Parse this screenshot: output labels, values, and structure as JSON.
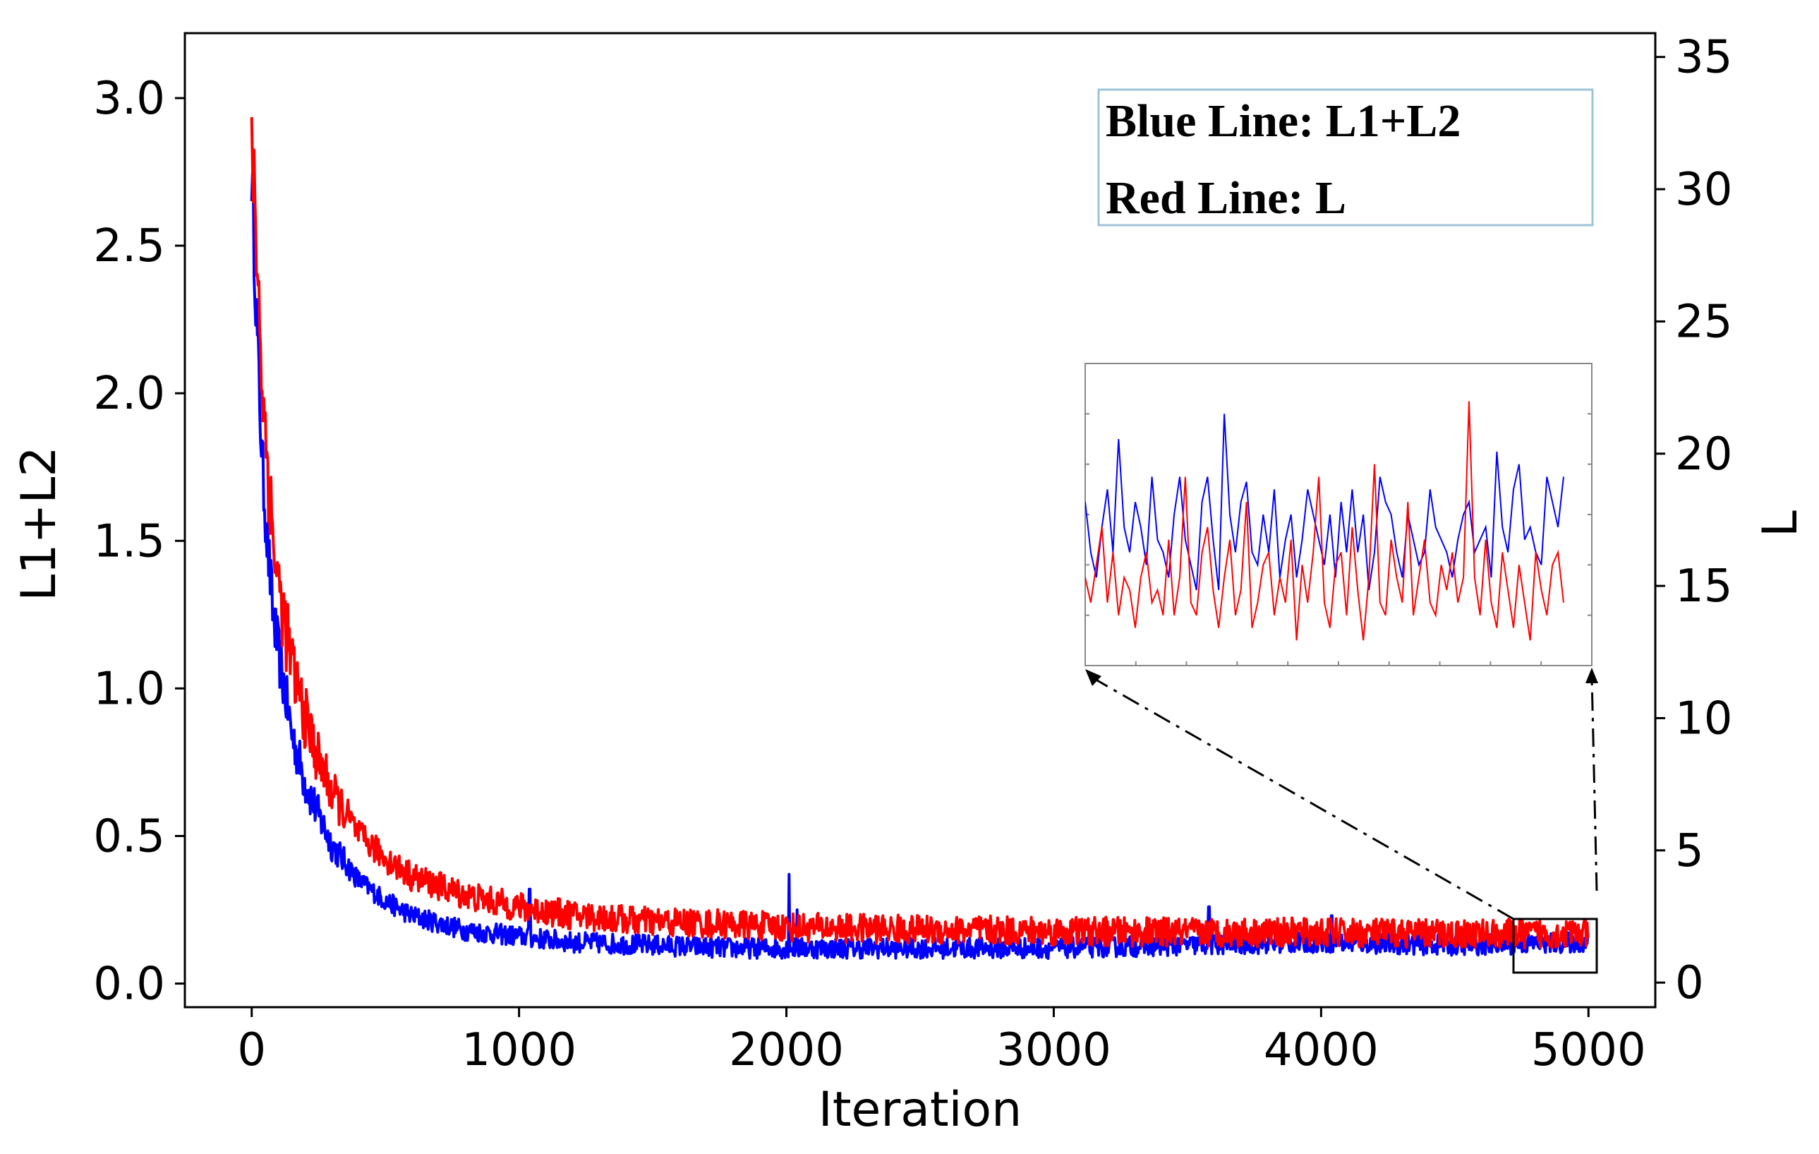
{
  "chart_data": {
    "type": "line",
    "xlabel": "Iteration",
    "ylabel_left": "L1+L2",
    "ylabel_right": "L",
    "xlim": [
      -250,
      5250
    ],
    "ylim_left": [
      -0.08,
      3.22
    ],
    "ylim_right": [
      -0.93,
      35.9
    ],
    "x_ticks": [
      "0",
      "1000",
      "2000",
      "3000",
      "4000",
      "5000"
    ],
    "y_ticks_left": [
      "0.0",
      "0.5",
      "1.0",
      "1.5",
      "2.0",
      "2.5",
      "3.0"
    ],
    "y_ticks_right": [
      "0",
      "5",
      "10",
      "15",
      "20",
      "25",
      "30",
      "35"
    ],
    "legend": {
      "blue_label": "Blue Line: L1+L2",
      "red_label": "Red Line: L"
    },
    "series": [
      {
        "name": "L1+L2",
        "axis": "left",
        "color": "#0000ff",
        "x": [
          0,
          20,
          40,
          60,
          80,
          100,
          150,
          200,
          250,
          300,
          400,
          500,
          600,
          800,
          1000,
          1200,
          1500,
          1800,
          2000,
          2500,
          3000,
          3500,
          4000,
          4500,
          5000
        ],
        "values": [
          2.75,
          2.2,
          1.75,
          1.48,
          1.25,
          1.12,
          0.85,
          0.68,
          0.57,
          0.47,
          0.35,
          0.28,
          0.23,
          0.18,
          0.16,
          0.14,
          0.13,
          0.12,
          0.12,
          0.12,
          0.12,
          0.13,
          0.14,
          0.13,
          0.14
        ],
        "spikes": [
          [
            1040,
            0.32
          ],
          [
            2010,
            0.37
          ],
          [
            2040,
            0.25
          ],
          [
            3580,
            0.26
          ],
          [
            4040,
            0.23
          ]
        ],
        "noise": 0.035
      },
      {
        "name": "L",
        "axis": "right",
        "color": "#ff0000",
        "x": [
          0,
          20,
          40,
          60,
          80,
          100,
          150,
          200,
          250,
          300,
          400,
          500,
          600,
          800,
          1000,
          1200,
          1500,
          1800,
          2000,
          2500,
          3000,
          3500,
          4000,
          4500,
          5000
        ],
        "values": [
          32.0,
          27.5,
          22.5,
          19.5,
          16.8,
          15.0,
          12.0,
          10.0,
          8.4,
          7.2,
          5.6,
          4.7,
          4.0,
          3.3,
          2.85,
          2.55,
          2.3,
          2.2,
          2.1,
          2.0,
          1.95,
          1.9,
          1.9,
          1.85,
          1.85
        ],
        "noise": 0.55
      }
    ],
    "inset": {
      "description": "zoom of iterations 4700–5000",
      "blue_values": [
        19.0,
        17.0,
        16.0,
        18.0,
        19.5,
        17.0,
        21.5,
        18.0,
        17.0,
        19.0,
        18.0,
        16.5,
        20.0,
        17.5,
        17.0,
        16.0,
        18.5,
        20.0,
        17.5,
        16.5,
        15.5,
        19.0,
        20.0,
        17.5,
        15.5,
        22.5,
        18.5,
        17.0,
        19.0,
        19.8,
        17.0,
        16.5,
        18.5,
        17.0,
        19.5,
        16.0,
        17.5,
        18.5,
        16.0,
        17.5,
        19.5,
        18.5,
        17.5,
        16.5,
        18.5,
        16.0,
        19.0,
        17.0,
        19.5,
        17.0,
        18.5,
        15.5,
        17.0,
        20.0,
        19.0,
        18.5,
        17.0,
        16.0,
        18.5,
        17.5,
        16.5,
        17.0,
        19.5,
        18.0,
        17.5,
        17.0,
        16.0,
        17.5,
        18.5,
        19.0,
        17.0,
        17.5,
        18.0,
        16.0,
        21.0,
        18.0,
        17.0,
        19.5,
        20.5,
        17.5,
        18.0,
        17.0,
        16.5,
        20.0,
        19.0,
        18.0,
        20.0
      ],
      "red_values": [
        16.0,
        15.0,
        16.5,
        18.0,
        15.0,
        17.0,
        14.5,
        16.0,
        15.5,
        14.0,
        16.0,
        17.0,
        15.0,
        15.5,
        14.5,
        17.5,
        14.5,
        16.0,
        20.0,
        15.0,
        14.5,
        17.0,
        18.0,
        15.5,
        14.0,
        16.0,
        17.5,
        14.5,
        15.5,
        19.0,
        14.0,
        15.0,
        16.5,
        17.0,
        14.5,
        16.0,
        15.0,
        17.5,
        13.5,
        16.5,
        15.0,
        17.0,
        20.0,
        15.0,
        14.0,
        16.5,
        17.0,
        14.5,
        18.0,
        15.5,
        13.5,
        16.0,
        20.5,
        15.0,
        14.5,
        17.5,
        16.0,
        15.0,
        19.0,
        14.5,
        16.0,
        17.5,
        15.0,
        14.5,
        16.5,
        15.5,
        17.0,
        15.0,
        16.0,
        23.0,
        16.0,
        14.5,
        17.5,
        15.0,
        14.0,
        17.0,
        15.5,
        14.0,
        16.5,
        15.0,
        13.5,
        17.0,
        15.5,
        14.5,
        16.5,
        17.0,
        15.0
      ]
    }
  }
}
